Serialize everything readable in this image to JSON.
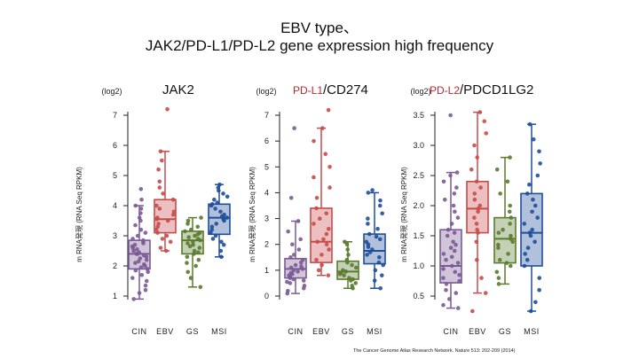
{
  "title_lines": [
    "EBV type、",
    "JAK2/PD-L1/PD-L2 gene expression high frequency"
  ],
  "citation": "The Cancer Genome Atlas Research Network. Nature 513: 202-209 (2014)",
  "colors": {
    "CIN": "#7a5a94",
    "EBV": "#c84b4b",
    "GS": "#5a7a2e",
    "MSI": "#1f4e9a",
    "gene_prefix": "#c0282d"
  },
  "chart_data": [
    {
      "type": "box",
      "unit_label": "(log2)",
      "title_parts": [
        {
          "text": "JAK2",
          "accent": false
        }
      ],
      "ylabel": "m RNA発現 (RNA Seq RPKM)",
      "ylim": [
        1,
        7
      ],
      "yticks": [
        1,
        2,
        3,
        4,
        5,
        6,
        7
      ],
      "categories": [
        "CIN",
        "EBV",
        "GS",
        "MSI"
      ],
      "series": [
        {
          "name": "CIN",
          "min": 0.9,
          "q1": 1.9,
          "median": 2.4,
          "q3": 2.85,
          "max": 4.0,
          "points": [
            0.9,
            1.1,
            1.2,
            1.35,
            1.5,
            1.6,
            1.7,
            1.8,
            1.85,
            1.9,
            1.95,
            2.0,
            2.05,
            2.1,
            2.15,
            2.2,
            2.25,
            2.3,
            2.35,
            2.4,
            2.4,
            2.45,
            2.5,
            2.55,
            2.6,
            2.65,
            2.7,
            2.75,
            2.8,
            2.85,
            2.9,
            3.0,
            3.1,
            3.2,
            3.35,
            3.5,
            3.6,
            3.75,
            3.9,
            4.0,
            4.2,
            4.55
          ]
        },
        {
          "name": "EBV",
          "min": 2.5,
          "q1": 3.1,
          "median": 3.55,
          "q3": 4.2,
          "max": 5.8,
          "points": [
            2.5,
            2.6,
            2.8,
            2.9,
            3.0,
            3.1,
            3.2,
            3.3,
            3.4,
            3.5,
            3.55,
            3.6,
            3.7,
            3.8,
            3.9,
            4.0,
            4.2,
            4.4,
            4.6,
            4.8,
            5.2,
            5.5,
            5.8,
            7.2
          ]
        },
        {
          "name": "GS",
          "min": 1.3,
          "q1": 2.4,
          "median": 2.85,
          "q3": 3.15,
          "max": 3.6,
          "points": [
            1.3,
            1.6,
            1.8,
            2.0,
            2.1,
            2.2,
            2.3,
            2.4,
            2.45,
            2.5,
            2.6,
            2.65,
            2.7,
            2.75,
            2.8,
            2.85,
            2.9,
            2.95,
            3.0,
            3.05,
            3.1,
            3.15,
            3.2,
            3.3,
            3.4,
            3.5,
            3.6
          ]
        },
        {
          "name": "MSI",
          "min": 2.3,
          "q1": 3.05,
          "median": 3.6,
          "q3": 4.05,
          "max": 4.7,
          "points": [
            2.3,
            2.5,
            2.7,
            2.8,
            2.9,
            3.0,
            3.1,
            3.2,
            3.3,
            3.4,
            3.5,
            3.55,
            3.6,
            3.65,
            3.7,
            3.8,
            3.9,
            4.0,
            4.05,
            4.1,
            4.2,
            4.3,
            4.4,
            4.5,
            4.6,
            4.7
          ]
        }
      ]
    },
    {
      "type": "box",
      "unit_label": "(log2)",
      "title_parts": [
        {
          "text": "PD-L1",
          "accent": true
        },
        {
          "text": "/CD274",
          "accent": false
        }
      ],
      "ylabel": "m RNA発現 (RNA Seq RPKM)",
      "ylim": [
        0,
        7
      ],
      "yticks": [
        0,
        1,
        2,
        3,
        4,
        5,
        6,
        7
      ],
      "categories": [
        "CIN",
        "EBV",
        "GS",
        "MSI"
      ],
      "series": [
        {
          "name": "CIN",
          "min": 0.1,
          "q1": 0.7,
          "median": 1.05,
          "q3": 1.45,
          "max": 2.9,
          "points": [
            0.1,
            0.2,
            0.3,
            0.4,
            0.5,
            0.55,
            0.6,
            0.65,
            0.7,
            0.75,
            0.8,
            0.85,
            0.9,
            0.95,
            1.0,
            1.05,
            1.1,
            1.15,
            1.2,
            1.3,
            1.4,
            1.5,
            1.6,
            1.8,
            2.0,
            2.2,
            2.5,
            2.9,
            3.8,
            6.5
          ]
        },
        {
          "name": "EBV",
          "min": 0.8,
          "q1": 1.3,
          "median": 2.1,
          "q3": 3.4,
          "max": 6.5,
          "points": [
            0.8,
            1.0,
            1.2,
            1.4,
            1.6,
            1.8,
            2.0,
            2.1,
            2.2,
            2.4,
            2.6,
            2.8,
            3.0,
            3.2,
            3.4,
            3.8,
            4.2,
            4.6,
            5.0,
            5.5,
            6.0,
            6.5,
            7.2
          ]
        },
        {
          "name": "GS",
          "min": 0.3,
          "q1": 0.65,
          "median": 0.95,
          "q3": 1.35,
          "max": 2.1,
          "points": [
            0.3,
            0.4,
            0.5,
            0.6,
            0.65,
            0.7,
            0.8,
            0.85,
            0.9,
            0.95,
            1.0,
            1.1,
            1.2,
            1.3,
            1.4,
            1.6,
            1.8,
            2.0,
            2.1
          ]
        },
        {
          "name": "MSI",
          "min": 0.3,
          "q1": 1.25,
          "median": 1.75,
          "q3": 2.4,
          "max": 4.0,
          "points": [
            0.3,
            0.6,
            0.8,
            1.0,
            1.2,
            1.3,
            1.5,
            1.6,
            1.7,
            1.8,
            1.9,
            2.0,
            2.1,
            2.2,
            2.3,
            2.4,
            2.6,
            2.8,
            3.0,
            3.2,
            3.5,
            3.7,
            4.0,
            4.1
          ]
        }
      ]
    },
    {
      "type": "box",
      "unit_label": "(log2)",
      "title_parts": [
        {
          "text": "PD-L2",
          "accent": true
        },
        {
          "text": "/PDCD1LG2",
          "accent": false
        }
      ],
      "ylabel": "m RNA発現 (RNA Seq RPKM)",
      "ylim": [
        0.5,
        3.5
      ],
      "yticks": [
        "0.5",
        "1.0",
        "1.5",
        "2.0",
        "2.5",
        "3.0",
        "3.5"
      ],
      "categories": [
        "CIN",
        "EBV",
        "GS",
        "MSI"
      ],
      "series": [
        {
          "name": "CIN",
          "min": 0.3,
          "q1": 0.72,
          "median": 1.0,
          "q3": 1.6,
          "max": 2.55,
          "points": [
            0.3,
            0.35,
            0.45,
            0.55,
            0.6,
            0.7,
            0.75,
            0.8,
            0.85,
            0.9,
            0.95,
            1.0,
            1.05,
            1.1,
            1.15,
            1.2,
            1.25,
            1.3,
            1.35,
            1.4,
            1.5,
            1.55,
            1.6,
            1.7,
            1.8,
            1.9,
            2.0,
            2.1,
            2.2,
            2.3,
            2.4,
            2.5,
            2.55,
            3.5
          ]
        },
        {
          "name": "EBV",
          "min": 0.55,
          "q1": 1.55,
          "median": 1.95,
          "q3": 2.4,
          "max": 3.55,
          "points": [
            0.25,
            0.55,
            0.8,
            1.1,
            1.4,
            1.55,
            1.6,
            1.7,
            1.8,
            1.9,
            1.95,
            2.0,
            2.1,
            2.2,
            2.3,
            2.4,
            2.6,
            2.8,
            3.0,
            3.2,
            3.4,
            3.55
          ]
        },
        {
          "name": "GS",
          "min": 0.7,
          "q1": 1.05,
          "median": 1.45,
          "q3": 1.8,
          "max": 2.8,
          "points": [
            0.7,
            0.8,
            0.9,
            1.0,
            1.05,
            1.1,
            1.2,
            1.3,
            1.35,
            1.4,
            1.45,
            1.5,
            1.55,
            1.6,
            1.7,
            1.8,
            1.9,
            2.0,
            2.2,
            2.4,
            2.6,
            2.8
          ]
        },
        {
          "name": "MSI",
          "min": 0.25,
          "q1": 1.0,
          "median": 1.55,
          "q3": 2.2,
          "max": 3.35,
          "points": [
            0.25,
            0.4,
            0.6,
            0.8,
            1.0,
            1.1,
            1.2,
            1.3,
            1.4,
            1.5,
            1.55,
            1.6,
            1.7,
            1.8,
            1.9,
            2.0,
            2.1,
            2.2,
            2.35,
            2.5,
            2.7,
            2.9,
            3.1,
            3.35
          ]
        }
      ]
    }
  ]
}
